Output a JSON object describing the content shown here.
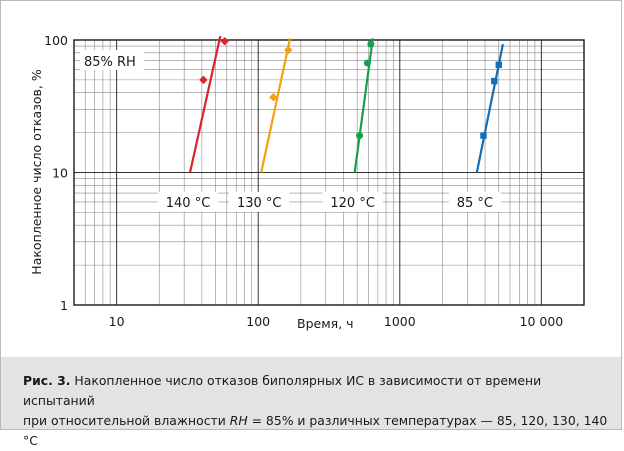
{
  "chart_data": {
    "type": "scatter",
    "title": "",
    "xlabel": "Время, ч",
    "ylabel": "Накопленное число отказов, %",
    "x_scale": "log",
    "y_scale": "log",
    "xlim": [
      5,
      20000
    ],
    "ylim": [
      1,
      100
    ],
    "x_ticks": [
      {
        "value": 10,
        "label": "10"
      },
      {
        "value": 100,
        "label": "100"
      },
      {
        "value": 1000,
        "label": "1000"
      },
      {
        "value": 10000,
        "label": "10 000"
      }
    ],
    "y_ticks": [
      {
        "value": 1,
        "label": "1"
      },
      {
        "value": 10,
        "label": "10"
      },
      {
        "value": 100,
        "label": "100"
      }
    ],
    "grid": true,
    "annotation": "85% RH",
    "series": [
      {
        "name": "140 °C",
        "color": "#d7262e",
        "marker": "diamond",
        "points": [
          {
            "x": 41,
            "y": 50
          },
          {
            "x": 58,
            "y": 98
          }
        ],
        "fit": [
          {
            "x": 33,
            "y": 10
          },
          {
            "x": 54,
            "y": 107
          }
        ]
      },
      {
        "name": "130 °C",
        "color": "#f3a10f",
        "marker": "diamond",
        "points": [
          {
            "x": 128,
            "y": 37
          },
          {
            "x": 163,
            "y": 84
          }
        ],
        "fit": [
          {
            "x": 105,
            "y": 10
          },
          {
            "x": 168,
            "y": 103
          }
        ]
      },
      {
        "name": "120 °C",
        "color": "#17a04a",
        "marker": "circle",
        "points": [
          {
            "x": 520,
            "y": 19
          },
          {
            "x": 590,
            "y": 67
          },
          {
            "x": 625,
            "y": 93
          }
        ],
        "fit": [
          {
            "x": 480,
            "y": 10
          },
          {
            "x": 645,
            "y": 103
          }
        ]
      },
      {
        "name": "85 °C",
        "color": "#136eb3",
        "marker": "square",
        "points": [
          {
            "x": 3900,
            "y": 19
          },
          {
            "x": 4650,
            "y": 49
          },
          {
            "x": 5000,
            "y": 65
          }
        ],
        "fit": [
          {
            "x": 3500,
            "y": 10
          },
          {
            "x": 5350,
            "y": 93
          }
        ]
      }
    ]
  },
  "caption": {
    "label": "Рис. 3.",
    "line1": "Накопленное число отказов биполярных ИС в зависимости от времени испытаний",
    "line2_pre": "при относительной влажности ",
    "line2_var": "RH",
    "line2_post": " = 85% и различных температурах — 85, 120, 130, 140 °С"
  }
}
